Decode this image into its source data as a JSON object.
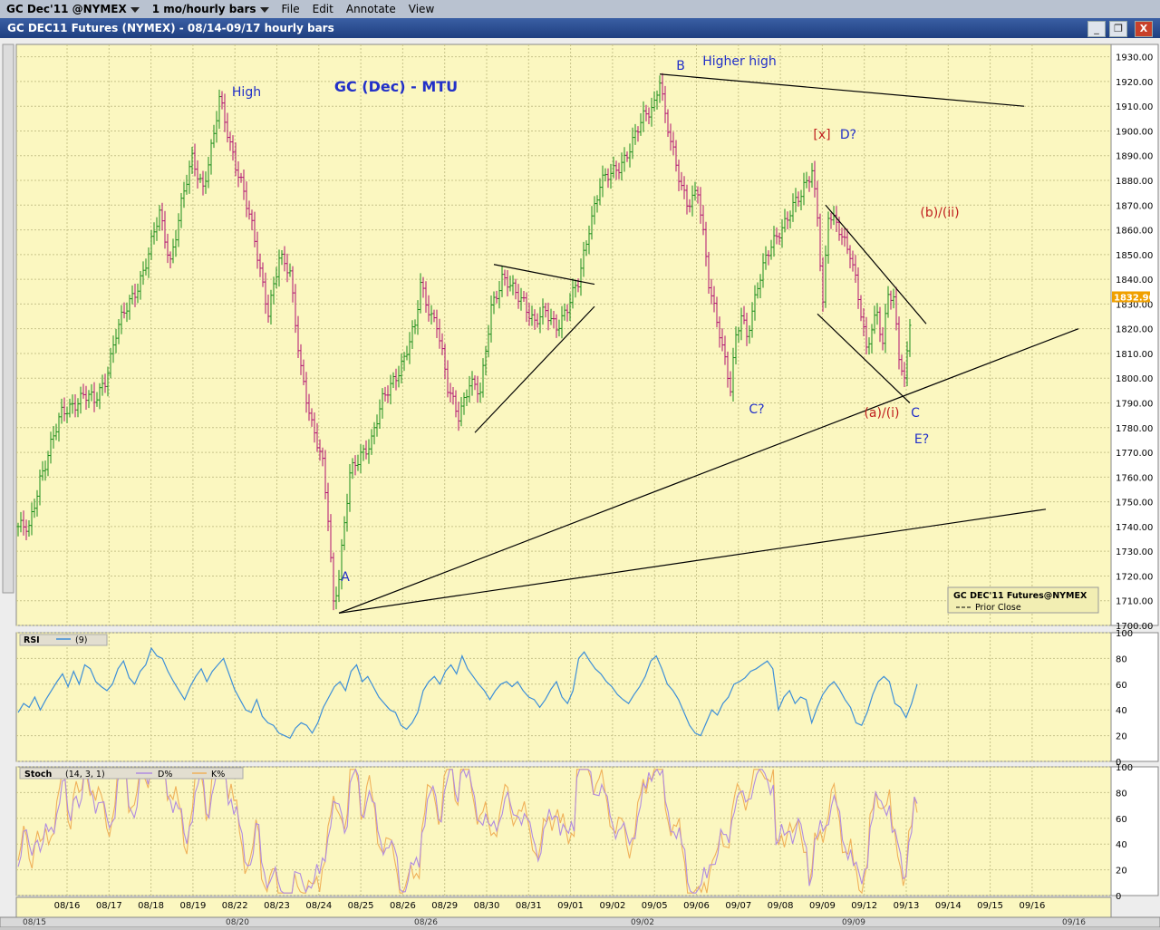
{
  "menubar": {
    "symbol": "GC Dec'11 @NYMEX",
    "interval": "1 mo/hourly bars",
    "file": "File",
    "edit": "Edit",
    "annotate": "Annotate",
    "view": "View"
  },
  "window": {
    "title": "GC DEC11 Futures (NYMEX) - 08/14-09/17  hourly bars",
    "close": "X"
  },
  "legend": {
    "title": "GC DEC'11 Futures@NYMEX",
    "prior_close": "Prior Close"
  },
  "last_price": "1832.90",
  "colors": {
    "chart_bg": "#fbf7c0",
    "up_bar": "#1a8c1a",
    "down_bar": "#b01070",
    "rsi_line": "#3d8fd8",
    "stoch_d": "#b08be0",
    "stoch_k": "#f0b15a",
    "label_blue": "#2230c8",
    "label_red": "#c02020"
  },
  "chart_data": [
    {
      "type": "line",
      "panel": "price",
      "title": "GC (Dec) - MTU",
      "ylim": [
        1700,
        1935
      ],
      "y_ticks": [
        "1930.00",
        "1920.00",
        "1910.00",
        "1900.00",
        "1890.00",
        "1880.00",
        "1870.00",
        "1860.00",
        "1850.00",
        "1840.00",
        "1830.00",
        "1820.00",
        "1810.00",
        "1800.00",
        "1790.00",
        "1780.00",
        "1770.00",
        "1760.00",
        "1750.00",
        "1740.00",
        "1730.00",
        "1720.00",
        "1710.00",
        "1700.00"
      ],
      "x_labels": [
        "08/16",
        "08/17",
        "08/18",
        "08/19",
        "08/22",
        "08/23",
        "08/24",
        "08/25",
        "08/26",
        "08/29",
        "08/30",
        "08/31",
        "09/01",
        "09/02",
        "09/05",
        "09/06",
        "09/07",
        "09/08",
        "09/09",
        "09/12",
        "09/13",
        "09/14",
        "09/15",
        "09/16"
      ],
      "x_labels_bottom": [
        "08/15",
        "08/20",
        "08/26",
        "09/02",
        "09/09",
        "09/16"
      ],
      "close_path": [
        [
          0,
          1740
        ],
        [
          4,
          1738
        ],
        [
          8,
          1760
        ],
        [
          12,
          1773
        ],
        [
          16,
          1785
        ],
        [
          20,
          1790
        ],
        [
          24,
          1793
        ],
        [
          28,
          1790
        ],
        [
          32,
          1800
        ],
        [
          36,
          1818
        ],
        [
          40,
          1828
        ],
        [
          44,
          1838
        ],
        [
          48,
          1850
        ],
        [
          52,
          1866
        ],
        [
          56,
          1848
        ],
        [
          60,
          1870
        ],
        [
          64,
          1888
        ],
        [
          68,
          1878
        ],
        [
          72,
          1898
        ],
        [
          74,
          1912
        ],
        [
          78,
          1895
        ],
        [
          82,
          1880
        ],
        [
          86,
          1860
        ],
        [
          90,
          1838
        ],
        [
          92,
          1828
        ],
        [
          96,
          1848
        ],
        [
          100,
          1842
        ],
        [
          104,
          1805
        ],
        [
          108,
          1780
        ],
        [
          112,
          1765
        ],
        [
          114,
          1745
        ],
        [
          116,
          1710
        ],
        [
          118,
          1720
        ],
        [
          122,
          1760
        ],
        [
          126,
          1770
        ],
        [
          130,
          1775
        ],
        [
          134,
          1790
        ],
        [
          138,
          1800
        ],
        [
          142,
          1808
        ],
        [
          146,
          1820
        ],
        [
          148,
          1838
        ],
        [
          152,
          1826
        ],
        [
          154,
          1822
        ],
        [
          158,
          1795
        ],
        [
          162,
          1786
        ],
        [
          166,
          1798
        ],
        [
          170,
          1793
        ],
        [
          174,
          1830
        ],
        [
          178,
          1840
        ],
        [
          182,
          1835
        ],
        [
          186,
          1832
        ],
        [
          190,
          1822
        ],
        [
          194,
          1826
        ],
        [
          198,
          1822
        ],
        [
          202,
          1828
        ],
        [
          206,
          1838
        ],
        [
          210,
          1862
        ],
        [
          214,
          1878
        ],
        [
          218,
          1882
        ],
        [
          222,
          1888
        ],
        [
          226,
          1895
        ],
        [
          230,
          1905
        ],
        [
          234,
          1912
        ],
        [
          236,
          1922
        ],
        [
          238,
          1905
        ],
        [
          242,
          1885
        ],
        [
          246,
          1872
        ],
        [
          250,
          1875
        ],
        [
          254,
          1838
        ],
        [
          258,
          1820
        ],
        [
          262,
          1795
        ],
        [
          264,
          1815
        ],
        [
          266,
          1825
        ],
        [
          268,
          1818
        ],
        [
          272,
          1838
        ],
        [
          276,
          1850
        ],
        [
          280,
          1860
        ],
        [
          284,
          1868
        ],
        [
          288,
          1873
        ],
        [
          292,
          1885
        ],
        [
          294,
          1867
        ],
        [
          296,
          1830
        ],
        [
          298,
          1865
        ],
        [
          302,
          1860
        ],
        [
          306,
          1852
        ],
        [
          308,
          1840
        ],
        [
          310,
          1825
        ],
        [
          312,
          1810
        ],
        [
          314,
          1820
        ],
        [
          316,
          1828
        ],
        [
          318,
          1815
        ],
        [
          320,
          1835
        ],
        [
          322,
          1830
        ],
        [
          324,
          1808
        ],
        [
          326,
          1798
        ],
        [
          328,
          1825
        ]
      ],
      "labels": [
        {
          "text": "High",
          "color": "blue"
        },
        {
          "text": "A",
          "color": "blue"
        },
        {
          "text": "B",
          "color": "blue"
        },
        {
          "text": "Higher high",
          "color": "blue"
        },
        {
          "text": "[x]",
          "color": "red"
        },
        {
          "text": "D?",
          "color": "blue"
        },
        {
          "text": "(b)/(ii)",
          "color": "red"
        },
        {
          "text": "C?",
          "color": "blue"
        },
        {
          "text": "(a)/(i)",
          "color": "red"
        },
        {
          "text": "C",
          "color": "blue"
        },
        {
          "text": "E?",
          "color": "blue"
        }
      ],
      "trendlines": [
        {
          "from": [
            236,
            1923
          ],
          "to": [
            370,
            1910
          ]
        },
        {
          "from": [
            118,
            1705
          ],
          "to": [
            390,
            1820
          ]
        },
        {
          "from": [
            118,
            1705
          ],
          "to": [
            378,
            1747
          ]
        },
        {
          "from": [
            168,
            1778
          ],
          "to": [
            212,
            1829
          ]
        },
        {
          "from": [
            175,
            1846
          ],
          "to": [
            212,
            1838
          ]
        },
        {
          "from": [
            297,
            1870
          ],
          "to": [
            334,
            1822
          ]
        },
        {
          "from": [
            294,
            1826
          ],
          "to": [
            328,
            1790
          ]
        }
      ]
    },
    {
      "type": "line",
      "panel": "rsi",
      "title": "RSI",
      "series": [
        {
          "name": "(9)"
        }
      ],
      "ylim": [
        0,
        100
      ],
      "y_ticks": [
        "100",
        "80",
        "60",
        "40",
        "20",
        "0"
      ],
      "values": [
        38,
        45,
        42,
        50,
        40,
        48,
        55,
        62,
        68,
        58,
        70,
        60,
        75,
        72,
        62,
        58,
        55,
        60,
        72,
        78,
        65,
        60,
        70,
        75,
        88,
        82,
        80,
        70,
        62,
        55,
        48,
        58,
        66,
        72,
        62,
        70,
        75,
        80,
        68,
        56,
        48,
        40,
        38,
        48,
        35,
        30,
        28,
        22,
        20,
        18,
        26,
        30,
        28,
        22,
        30,
        42,
        50,
        58,
        62,
        55,
        70,
        75,
        62,
        66,
        58,
        50,
        45,
        40,
        38,
        28,
        25,
        30,
        38,
        55,
        62,
        66,
        60,
        70,
        75,
        68,
        82,
        72,
        66,
        60,
        55,
        48,
        55,
        60,
        62,
        58,
        62,
        55,
        50,
        48,
        42,
        48,
        56,
        62,
        50,
        45,
        55,
        80,
        85,
        78,
        72,
        68,
        62,
        58,
        52,
        48,
        45,
        52,
        58,
        66,
        78,
        82,
        72,
        60,
        55,
        48,
        38,
        28,
        22,
        20,
        30,
        40,
        36,
        45,
        50,
        60,
        62,
        65,
        70,
        72,
        75,
        78,
        72,
        40,
        50,
        55,
        45,
        50,
        48,
        30,
        42,
        52,
        58,
        62,
        56,
        48,
        42,
        30,
        28,
        38,
        52,
        62,
        66,
        62,
        45,
        42,
        34,
        45,
        60
      ]
    },
    {
      "type": "line",
      "panel": "stoch",
      "title": "Stoch",
      "params": "(14, 3, 1)",
      "series": [
        {
          "name": "D%"
        },
        {
          "name": "K%"
        }
      ],
      "ylim": [
        0,
        100
      ],
      "y_ticks": [
        "100",
        "80",
        "60",
        "40",
        "20",
        "0"
      ]
    }
  ]
}
